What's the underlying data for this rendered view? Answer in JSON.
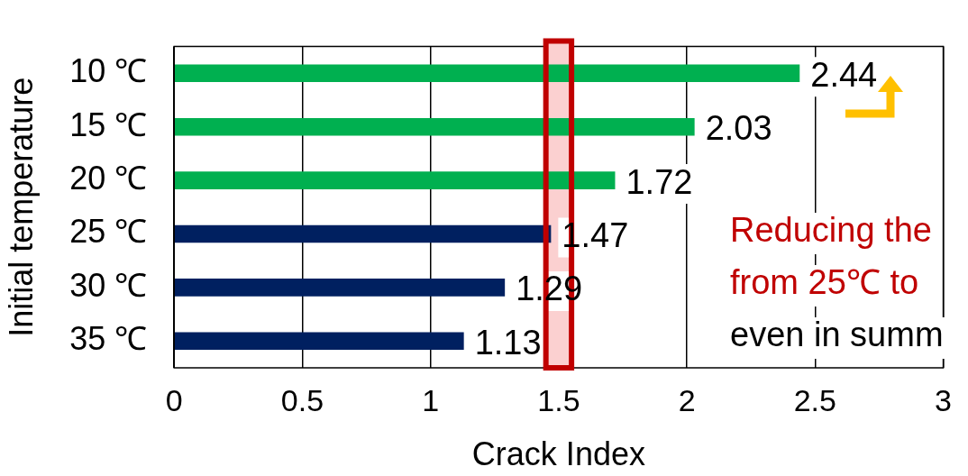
{
  "chart_data": {
    "type": "bar",
    "orientation": "horizontal",
    "xlabel": "Crack Index",
    "ylabel": "Initial temperature",
    "categories": [
      "10 ℃",
      "15 ℃",
      "20 ℃",
      "25 ℃",
      "30 ℃",
      "35 ℃"
    ],
    "values": [
      2.44,
      2.03,
      1.72,
      1.47,
      1.29,
      1.13
    ],
    "colors": [
      "#00b050",
      "#00b050",
      "#00b050",
      "#002060",
      "#002060",
      "#002060"
    ],
    "xlim": [
      0,
      3
    ],
    "xticks": [
      0,
      0.5,
      1,
      1.5,
      2,
      2.5,
      3
    ],
    "grid": "x",
    "data_labels": true,
    "legend": false,
    "bands": [
      {
        "axis": "x",
        "from": 1.45,
        "to": 1.55,
        "color": "#fbd0d0"
      }
    ],
    "annotations": [
      "Reducing the",
      "from 25℃ to",
      "even in summ"
    ]
  }
}
